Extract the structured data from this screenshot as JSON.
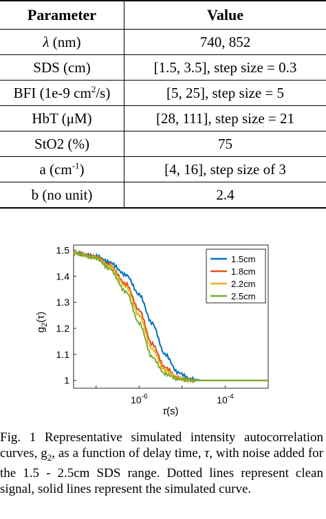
{
  "table": {
    "headers": [
      "Parameter",
      "Value"
    ],
    "rows": [
      {
        "param": "λ (nm)",
        "value": "740, 852"
      },
      {
        "param": "SDS (cm)",
        "value": "[1.5, 3.5], step size = 0.3"
      },
      {
        "param": "BFI (1e-9 cm2/s)",
        "value": "[5, 25], step size = 5"
      },
      {
        "param": "HbT (μM)",
        "value": "[28, 111], step size = 21"
      },
      {
        "param": "StO2 (%)",
        "value": "75"
      },
      {
        "param": "a (cm-1)",
        "value": "[4, 16], step size of 3"
      },
      {
        "param": "b (no unit)",
        "value": "2.4"
      }
    ]
  },
  "chart_data": {
    "type": "line",
    "xlabel": "τ(s)",
    "ylabel": "g2(τ)",
    "x_scale": "log",
    "xlim": [
      3e-08,
      0.001
    ],
    "ylim": [
      0.97,
      1.52
    ],
    "yticks": [
      "1.5",
      "1.4",
      "1.3",
      "1.2",
      "1.1",
      "1"
    ],
    "xticks": [
      "10-6",
      "10-4"
    ],
    "legend_position": "top-right",
    "series": [
      {
        "name": "1.5cm",
        "color": "#0072BD",
        "x": [
          3e-08,
          1e-07,
          2e-07,
          5e-07,
          1e-06,
          2e-06,
          4e-06,
          8e-06,
          1.6e-05,
          3.2e-05,
          0.0001,
          0.001
        ],
        "values": [
          1.49,
          1.478,
          1.455,
          1.405,
          1.33,
          1.22,
          1.1,
          1.03,
          1.005,
          1.0,
          1.0,
          1.0
        ]
      },
      {
        "name": "1.8cm",
        "color": "#D95319",
        "x": [
          3e-08,
          1e-07,
          2e-07,
          5e-07,
          1e-06,
          2e-06,
          4e-06,
          8e-06,
          1.6e-05,
          3.2e-05,
          0.0001,
          0.001
        ],
        "values": [
          1.49,
          1.475,
          1.445,
          1.37,
          1.27,
          1.14,
          1.05,
          1.01,
          1.0,
          1.0,
          1.0,
          1.0
        ]
      },
      {
        "name": "2.2cm",
        "color": "#EDB120",
        "x": [
          3e-08,
          1e-07,
          2e-07,
          5e-07,
          1e-06,
          2e-06,
          4e-06,
          8e-06,
          1.6e-05,
          3.2e-05,
          0.0001,
          0.001
        ],
        "values": [
          1.49,
          1.472,
          1.44,
          1.36,
          1.25,
          1.12,
          1.04,
          1.008,
          1.0,
          1.0,
          1.0,
          1.0
        ]
      },
      {
        "name": "2.5cm",
        "color": "#77AC30",
        "x": [
          3e-08,
          1e-07,
          2e-07,
          5e-07,
          1e-06,
          2e-06,
          4e-06,
          8e-06,
          1.6e-05,
          3.2e-05,
          0.0001,
          0.001
        ],
        "values": [
          1.49,
          1.47,
          1.43,
          1.34,
          1.22,
          1.09,
          1.025,
          1.005,
          1.0,
          1.0,
          1.0,
          1.0
        ]
      }
    ]
  },
  "caption": "Fig. 1 Representative simulated intensity autocorrelation curves, g2, as a function of delay time, τ, with noise added for the 1.5 - 2.5cm SDS range. Dotted lines represent clean signal, solid lines represent the simulated curve."
}
